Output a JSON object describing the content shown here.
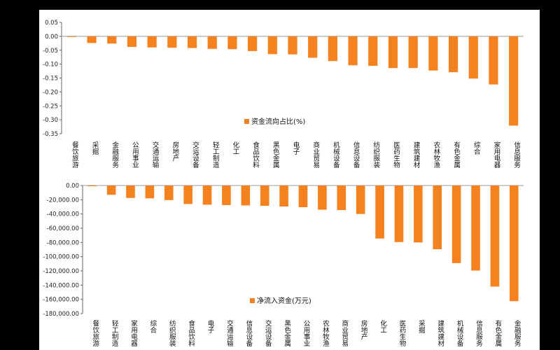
{
  "chart_data": [
    {
      "type": "bar",
      "categories": [
        "餐饮旅游",
        "采掘",
        "金融服务",
        "公用事业",
        "交通运输",
        "房地产",
        "交运设备",
        "轻工制造",
        "化工",
        "食品饮料",
        "黑色金属",
        "电子",
        "商业贸易",
        "机械设备",
        "信息设备",
        "纺织服装",
        "医药生物",
        "建筑建材",
        "农林牧渔",
        "有色金属",
        "综合",
        "家用电器",
        "信息服务"
      ],
      "series": [
        {
          "name": "资金流向占比(%)",
          "values": [
            -0.002,
            -0.024,
            -0.026,
            -0.038,
            -0.04,
            -0.041,
            -0.042,
            -0.045,
            -0.046,
            -0.053,
            -0.064,
            -0.065,
            -0.077,
            -0.089,
            -0.104,
            -0.106,
            -0.114,
            -0.114,
            -0.123,
            -0.129,
            -0.152,
            -0.173,
            -0.321
          ]
        }
      ],
      "ylim": [
        -0.35,
        0.05
      ],
      "yticks": [
        "0.05",
        "0.00",
        "-0.05",
        "-0.10",
        "-0.15",
        "-0.20",
        "-0.25",
        "-0.30",
        "-0.35"
      ],
      "legend_position": "bottom-center",
      "colors": {
        "bar": "#F5821F"
      }
    },
    {
      "type": "bar",
      "categories": [
        "餐饮旅游",
        "轻工制造",
        "家用电器",
        "综合",
        "纺织服装",
        "食品饮料",
        "电子",
        "交通运输",
        "信息设备",
        "交运设备",
        "黑色金属",
        "公用事业",
        "农林牧渔",
        "商业贸易",
        "房地产",
        "化工",
        "医药生物",
        "采掘",
        "建筑建材",
        "机械设备",
        "信息服务",
        "有色金属",
        "金融服务"
      ],
      "series": [
        {
          "name": "净流入资金(万元)",
          "values": [
            -1000,
            -13000,
            -17500,
            -18000,
            -20500,
            -26000,
            -27000,
            -27500,
            -28000,
            -28500,
            -29500,
            -30500,
            -34000,
            -34500,
            -40000,
            -74500,
            -79500,
            -80000,
            -89500,
            -109000,
            -119500,
            -142000,
            -162500
          ]
        }
      ],
      "ylim": [
        -180000,
        0
      ],
      "yticks": [
        "0.00",
        "-20,000.00",
        "-40,000.00",
        "-60,000.00",
        "-80,000.00",
        "-100,000.00",
        "-120,000.00",
        "-140,000.00",
        "-160,000.00",
        "-180,000.00"
      ],
      "legend_position": "bottom-center",
      "colors": {
        "bar": "#F5821F"
      }
    }
  ]
}
